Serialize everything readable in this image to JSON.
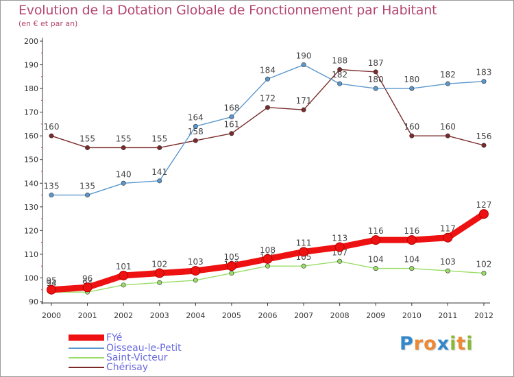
{
  "chart_data": {
    "type": "line",
    "title": "Evolution de la Dotation Globale de Fonctionnement par Habitant",
    "subtitle": "(en € et par an)",
    "xlabel": "",
    "ylabel": "",
    "x": [
      "2000",
      "2001",
      "2002",
      "2003",
      "2004",
      "2005",
      "2006",
      "2007",
      "2008",
      "2009",
      "2010",
      "2011",
      "2012"
    ],
    "ylim": [
      90,
      200
    ],
    "yticks": [
      90,
      100,
      110,
      120,
      130,
      140,
      150,
      160,
      170,
      180,
      190,
      200
    ],
    "grid": false,
    "legend_position": "bottom-left",
    "series": [
      {
        "name": "FYé",
        "color": "#ee1111",
        "values": [
          95,
          96,
          101,
          102,
          103,
          105,
          108,
          111,
          113,
          116,
          116,
          117,
          127
        ]
      },
      {
        "name": "Oisseau-le-Petit",
        "color": "#5b97cc",
        "values": [
          135,
          135,
          140,
          141,
          164,
          168,
          184,
          190,
          182,
          180,
          180,
          182,
          183
        ]
      },
      {
        "name": "Saint-Victeur",
        "color": "#99dd66",
        "values": [
          94,
          94,
          97,
          98,
          99,
          102,
          105,
          105,
          107,
          104,
          104,
          103,
          102
        ]
      },
      {
        "name": "Chérisay",
        "color": "#7a2a2a",
        "values": [
          160,
          155,
          155,
          155,
          158,
          161,
          172,
          171,
          188,
          187,
          160,
          160,
          156
        ]
      }
    ]
  },
  "brand": {
    "letters": [
      "P",
      "r",
      "o",
      "x",
      "i",
      "t",
      "i"
    ],
    "colors": [
      "#3388cc",
      "#ee8833",
      "#ee8833",
      "#3388cc",
      "#88bb33",
      "#ee8833",
      "#88bb33"
    ]
  }
}
